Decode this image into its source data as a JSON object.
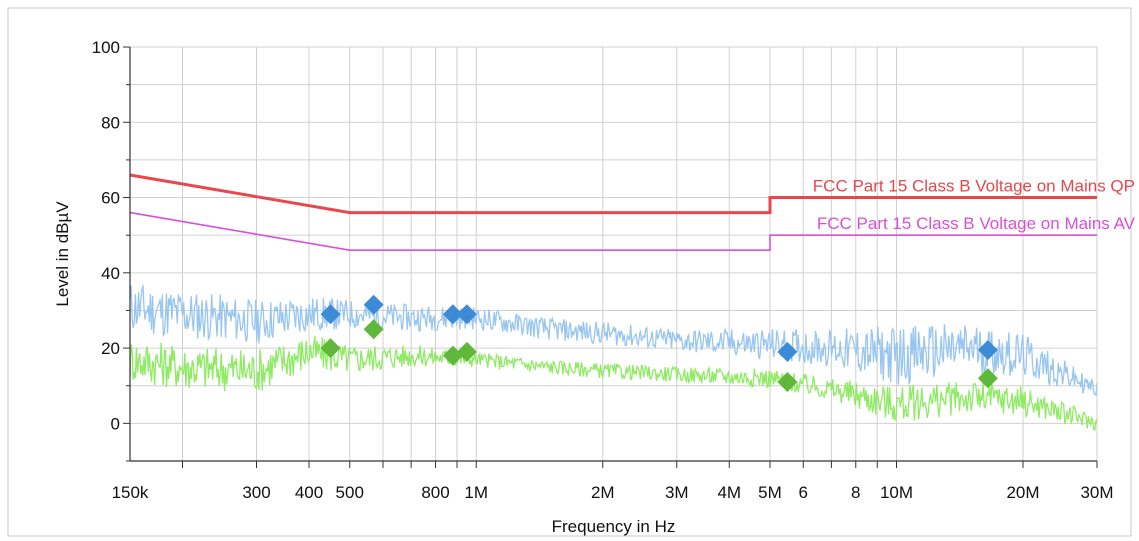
{
  "chart_data": {
    "type": "line",
    "xlabel": "Frequency in Hz",
    "ylabel": "Level in dBµV",
    "x_scale": "log",
    "xlim": [
      150000,
      30000000
    ],
    "ylim": [
      -10,
      100
    ],
    "grid": true,
    "x_tick_labels": [
      {
        "v": 150000,
        "t": "150k"
      },
      {
        "v": 300000,
        "t": "300"
      },
      {
        "v": 400000,
        "t": "400"
      },
      {
        "v": 500000,
        "t": "500"
      },
      {
        "v": 800000,
        "t": "800"
      },
      {
        "v": 1000000,
        "t": "1M"
      },
      {
        "v": 2000000,
        "t": "2M"
      },
      {
        "v": 3000000,
        "t": "3M"
      },
      {
        "v": 4000000,
        "t": "4M"
      },
      {
        "v": 5000000,
        "t": "5M"
      },
      {
        "v": 6000000,
        "t": "6"
      },
      {
        "v": 8000000,
        "t": "8"
      },
      {
        "v": 10000000,
        "t": "10M"
      },
      {
        "v": 20000000,
        "t": "20M"
      },
      {
        "v": 30000000,
        "t": "30M"
      }
    ],
    "y_ticks": [
      0,
      20,
      40,
      60,
      80,
      100
    ],
    "limit_lines": [
      {
        "name": "FCC Part 15 Class B Voltage on Mains QP",
        "color": "#e8474b",
        "points": [
          [
            150000,
            66
          ],
          [
            500000,
            56
          ],
          [
            5000000,
            56
          ],
          [
            5000000,
            60
          ],
          [
            30000000,
            60
          ]
        ]
      },
      {
        "name": "FCC Part 15 Class B Voltage on Mains AV",
        "color": "#d94fd9",
        "points": [
          [
            150000,
            56
          ],
          [
            500000,
            46
          ],
          [
            5000000,
            46
          ],
          [
            5000000,
            50
          ],
          [
            30000000,
            50
          ]
        ]
      }
    ],
    "series": [
      {
        "color": "#99c6f0",
        "points": [
          [
            150000,
            31
          ],
          [
            170000,
            30
          ],
          [
            200000,
            29
          ],
          [
            250000,
            28
          ],
          [
            300000,
            27
          ],
          [
            400000,
            29
          ],
          [
            500000,
            29
          ],
          [
            700000,
            28
          ],
          [
            1000000,
            28
          ],
          [
            1500000,
            25
          ],
          [
            2000000,
            24
          ],
          [
            3000000,
            22
          ],
          [
            5000000,
            21
          ],
          [
            7000000,
            20
          ],
          [
            10000000,
            18
          ],
          [
            15000000,
            20
          ],
          [
            20000000,
            18
          ],
          [
            30000000,
            9
          ]
        ],
        "spread": [
          [
            150000,
            7
          ],
          [
            300000,
            6
          ],
          [
            500000,
            4
          ],
          [
            1000000,
            3
          ],
          [
            3000000,
            3
          ],
          [
            7000000,
            5
          ],
          [
            10000000,
            8
          ],
          [
            20000000,
            6
          ],
          [
            30000000,
            2
          ]
        ]
      },
      {
        "color": "#8fea64",
        "points": [
          [
            150000,
            17
          ],
          [
            200000,
            15
          ],
          [
            300000,
            14
          ],
          [
            400000,
            19
          ],
          [
            500000,
            17
          ],
          [
            700000,
            18
          ],
          [
            1000000,
            17
          ],
          [
            1500000,
            15
          ],
          [
            2000000,
            14
          ],
          [
            3000000,
            13
          ],
          [
            5000000,
            12
          ],
          [
            7000000,
            9
          ],
          [
            10000000,
            5
          ],
          [
            15000000,
            7
          ],
          [
            20000000,
            6
          ],
          [
            30000000,
            0
          ]
        ],
        "spread": [
          [
            150000,
            6
          ],
          [
            300000,
            6
          ],
          [
            500000,
            4
          ],
          [
            1000000,
            2
          ],
          [
            3000000,
            2
          ],
          [
            7000000,
            3
          ],
          [
            10000000,
            5
          ],
          [
            20000000,
            4
          ],
          [
            30000000,
            2
          ]
        ]
      }
    ],
    "markers_qp": {
      "color": "#3d8bd6",
      "points": [
        [
          450000,
          29
        ],
        [
          570000,
          31.5
        ],
        [
          880000,
          29
        ],
        [
          950000,
          29
        ],
        [
          5500000,
          19
        ],
        [
          16500000,
          19.5
        ]
      ]
    },
    "markers_av": {
      "color": "#5fb83a",
      "points": [
        [
          450000,
          20
        ],
        [
          570000,
          25
        ],
        [
          880000,
          18
        ],
        [
          950000,
          19
        ],
        [
          5500000,
          11
        ],
        [
          16500000,
          12
        ]
      ]
    }
  }
}
